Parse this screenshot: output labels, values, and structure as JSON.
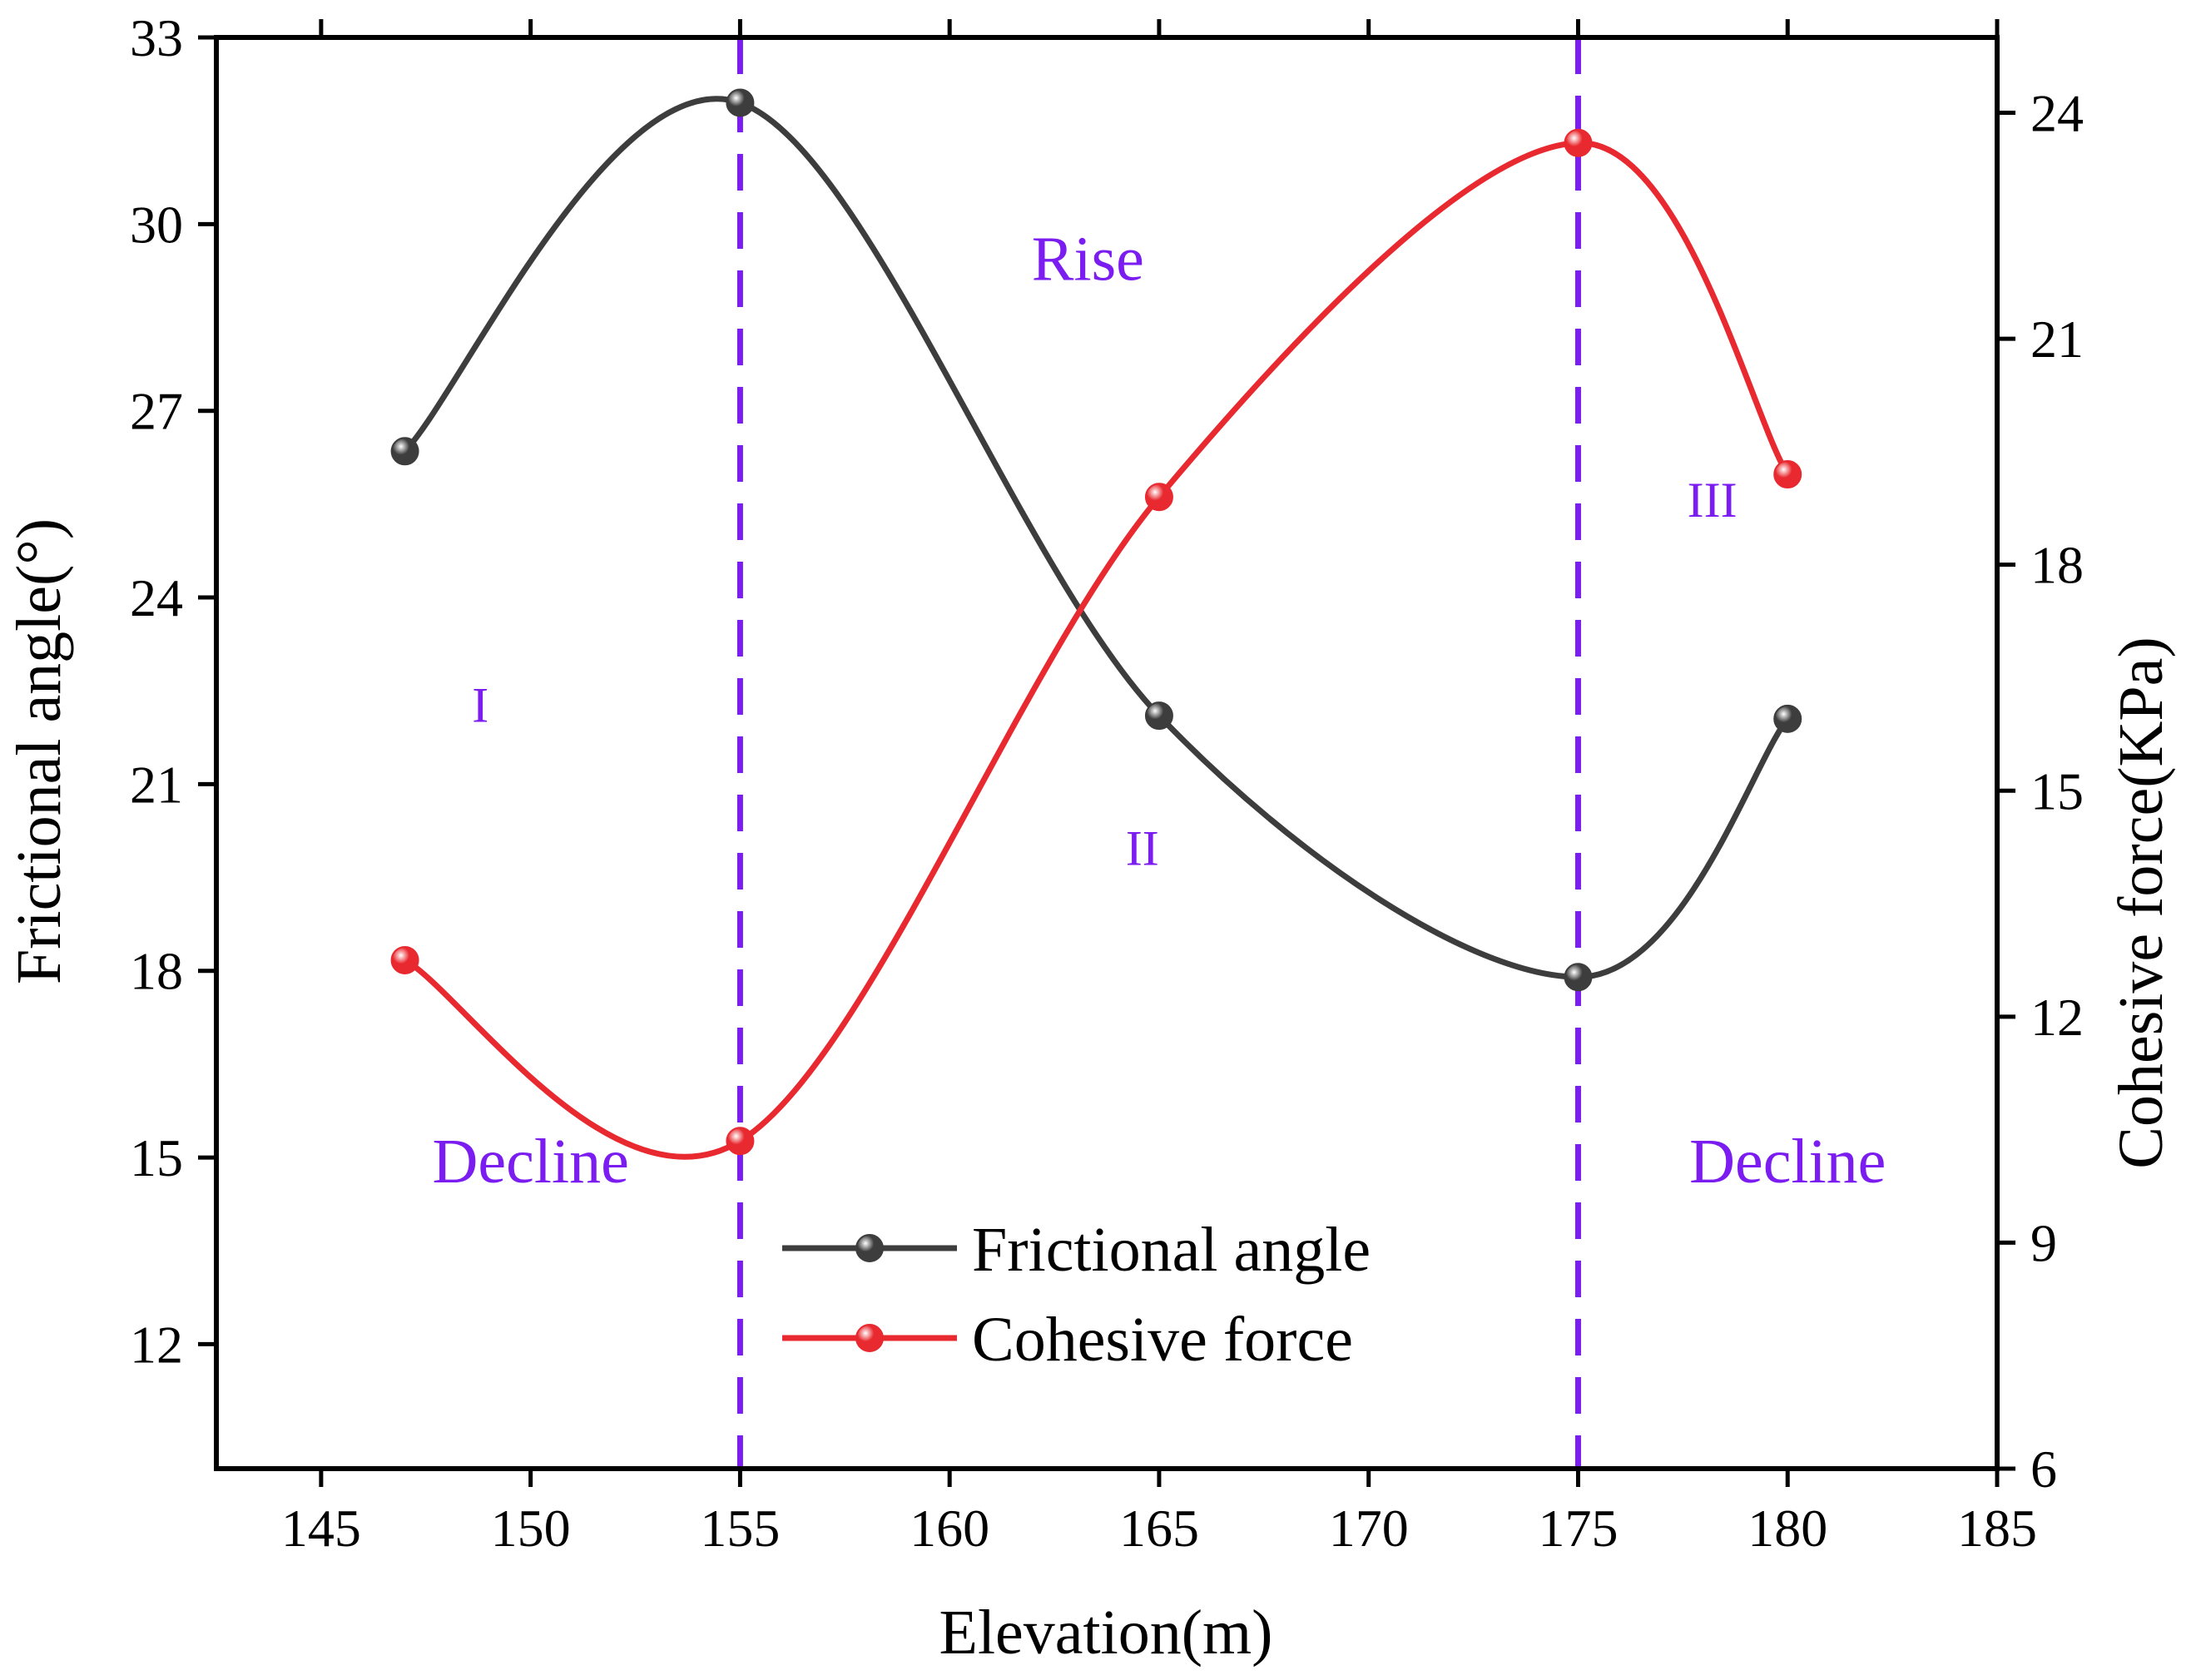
{
  "chart_data": {
    "type": "line",
    "title": "",
    "xlabel": "Elevation(m)",
    "ylabel_left": "Frictional angle(°)",
    "ylabel_right": "Cohesive force(KPa)",
    "xlim": [
      142.5,
      185
    ],
    "ylim_left": [
      10,
      33
    ],
    "ylim_right": [
      6,
      25
    ],
    "xticks": [
      145,
      150,
      155,
      160,
      165,
      170,
      175,
      180,
      185
    ],
    "yticks_left": [
      12,
      15,
      18,
      21,
      24,
      27,
      30,
      33
    ],
    "yticks_right": [
      6,
      9,
      12,
      15,
      18,
      21,
      24
    ],
    "x": [
      147,
      155,
      165,
      175,
      180
    ],
    "series": [
      {
        "name": "Frictional angle",
        "axis": "left",
        "color": "#3d3d3d",
        "values": [
          26.35,
          31.95,
          22.1,
          17.9,
          22.05
        ]
      },
      {
        "name": "Cohesive force",
        "axis": "right",
        "color": "#e8292f",
        "values": [
          12.75,
          10.35,
          18.9,
          23.6,
          19.2
        ]
      }
    ],
    "dividers": {
      "x": [
        155,
        175
      ],
      "color": "#7b1cf0",
      "style": "dashed"
    },
    "annotations": [
      {
        "text": "Decline",
        "x": 150,
        "y_left": 14.6
      },
      {
        "text": "Rise",
        "x": 163.3,
        "y_left": 29.1
      },
      {
        "text": "Decline",
        "x": 180,
        "y_left": 14.6
      },
      {
        "text": "I",
        "x": 148.8,
        "y_left": 22.0
      },
      {
        "text": "II",
        "x": 164.6,
        "y_left": 19.7
      },
      {
        "text": "III",
        "x": 178.2,
        "y_left": 25.3
      }
    ],
    "annotation_color": "#7b1cf0",
    "legend_position": "bottom-center",
    "grid": false
  }
}
